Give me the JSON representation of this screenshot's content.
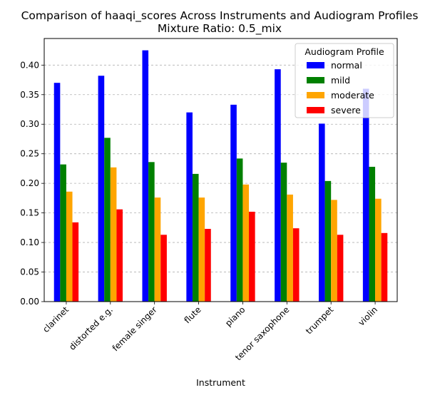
{
  "chart_data": {
    "type": "bar",
    "title": "Comparison of haaqi_scores Across Instruments and Audiogram Profiles",
    "subtitle": "Mixture Ratio: 0.5_mix",
    "xlabel": "Instrument",
    "ylabel": "",
    "ylim": [
      0,
      0.445
    ],
    "yticks": [
      "0.00",
      "0.05",
      "0.10",
      "0.15",
      "0.20",
      "0.25",
      "0.30",
      "0.35",
      "0.40"
    ],
    "grid": "y-dashed",
    "legend": {
      "title": "Audiogram Profile",
      "placement": "top-right"
    },
    "categories": [
      "clarinet",
      "distorted e.g.",
      "female singer",
      "flute",
      "piano",
      "tenor saxophone",
      "trumpet",
      "violin"
    ],
    "series": [
      {
        "name": "normal",
        "color": "#0000ff",
        "values": [
          0.37,
          0.382,
          0.425,
          0.32,
          0.333,
          0.393,
          0.301,
          0.36
        ]
      },
      {
        "name": "mild",
        "color": "#008000",
        "values": [
          0.232,
          0.277,
          0.236,
          0.216,
          0.242,
          0.235,
          0.204,
          0.228
        ]
      },
      {
        "name": "moderate",
        "color": "#ffa500",
        "values": [
          0.186,
          0.227,
          0.176,
          0.176,
          0.198,
          0.181,
          0.172,
          0.174
        ]
      },
      {
        "name": "severe",
        "color": "#ff0000",
        "values": [
          0.134,
          0.156,
          0.113,
          0.123,
          0.152,
          0.124,
          0.113,
          0.116
        ]
      }
    ]
  }
}
